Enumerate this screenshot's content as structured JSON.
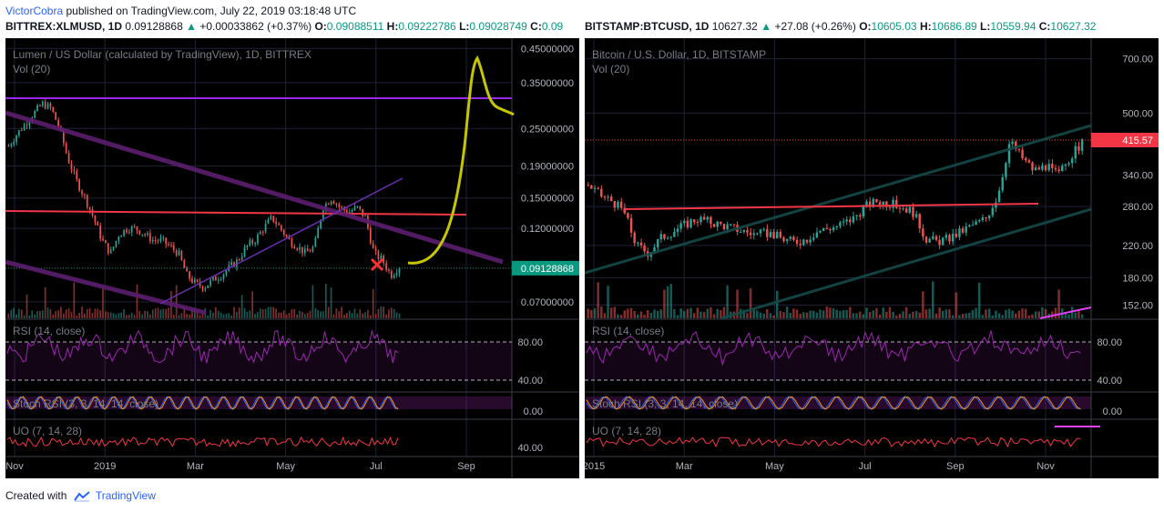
{
  "header": {
    "author": "VictorCobra",
    "published_text": "published on TradingView.com, July 22, 2019 03:18:48 UTC"
  },
  "footer": {
    "created_with": "Created with",
    "brand": "TradingView"
  },
  "left_symbol": {
    "ticker": "BITTREX:XLMUSD, 1D",
    "last": "0.09128868",
    "arrow": "▲",
    "change": "+0.00033862 (+0.37%)",
    "o_label": "O:",
    "o": "0.09088511",
    "h_label": "H:",
    "h": "0.09222786",
    "l_label": "L:",
    "l": "0.09028749",
    "c_label": "C:",
    "c": "0.09"
  },
  "right_symbol": {
    "ticker": "BITSTAMP:BTCUSD, 1D",
    "last": "10627.32",
    "arrow": "▲",
    "change": "+27.08 (+0.26%)",
    "o_label": "O:",
    "o": "10605.03",
    "h_label": "H:",
    "h": "10686.89",
    "l_label": "L:",
    "l": "10559.94",
    "c_label": "C:",
    "c": "10627.32"
  },
  "colors": {
    "up": "#26a69a",
    "down": "#ef5350",
    "rsi": "#9c27b0",
    "uo": "#f23645",
    "annotation": "#c6c600",
    "price_tag": "#089981",
    "price_tag_right": "#f23645"
  },
  "chart_data": [
    {
      "type": "candlestick",
      "title": "Lumen / US Dollar (calculated by TradingView), 1D, BITTREX",
      "volume_label": "Vol (20)",
      "scale": "log",
      "ylim": [
        0.062,
        0.46
      ],
      "y_ticks": [
        "0.45000000",
        "0.35000000",
        "0.25000000",
        "0.19000000",
        "0.15000000",
        "0.12000000",
        "0.07000000"
      ],
      "x_ticks": [
        "Nov",
        "2019",
        "Mar",
        "May",
        "Jul",
        "Sep"
      ],
      "last_price_label": "0.09128868",
      "closes": [
        0.22,
        0.24,
        0.26,
        0.28,
        0.3,
        0.29,
        0.25,
        0.2,
        0.17,
        0.15,
        0.13,
        0.11,
        0.1,
        0.115,
        0.12,
        0.12,
        0.115,
        0.11,
        0.11,
        0.105,
        0.1,
        0.085,
        0.08,
        0.078,
        0.082,
        0.085,
        0.09,
        0.095,
        0.105,
        0.11,
        0.12,
        0.13,
        0.12,
        0.11,
        0.105,
        0.1,
        0.105,
        0.14,
        0.15,
        0.14,
        0.135,
        0.14,
        0.13,
        0.1,
        0.095,
        0.085,
        0.091
      ],
      "annotations": [
        "support-resistance line",
        "projected path",
        "red X marker"
      ],
      "indicators": [
        {
          "name": "RSI (14, close)",
          "ticks": [
            "80.00",
            "40.00"
          ]
        },
        {
          "name": "Stoch RSI (3, 3, 14, 14, close)",
          "ticks": [
            "0.00"
          ]
        },
        {
          "name": "UO (7, 14, 28)",
          "ticks": [
            "40.00"
          ]
        }
      ]
    },
    {
      "type": "candlestick",
      "title": "Bitcoin / U.S. Dollar, 1D, BITSTAMP",
      "volume_label": "Vol (20)",
      "scale": "log",
      "ylim": [
        140,
        760
      ],
      "y_ticks": [
        "700.00",
        "500.00",
        "340.00",
        "280.00",
        "220.00",
        "180.00",
        "152.00"
      ],
      "x_ticks": [
        "2015",
        "Mar",
        "May",
        "Jul",
        "Sep",
        "Nov"
      ],
      "last_price_label": "415.57",
      "closes": [
        320,
        300,
        290,
        270,
        220,
        210,
        230,
        240,
        250,
        260,
        255,
        250,
        245,
        240,
        235,
        238,
        230,
        225,
        228,
        240,
        245,
        250,
        260,
        280,
        290,
        285,
        280,
        270,
        230,
        225,
        230,
        240,
        250,
        260,
        300,
        420,
        380,
        350,
        360,
        340,
        380,
        415
      ],
      "indicators": [
        {
          "name": "RSI (14, close)",
          "ticks": [
            "80.00",
            "40.00"
          ]
        },
        {
          "name": "Stoch RSI (3, 3, 14, 14, close)",
          "ticks": [
            "0.00"
          ]
        },
        {
          "name": "UO (7, 14, 28)",
          "ticks": []
        }
      ]
    }
  ]
}
